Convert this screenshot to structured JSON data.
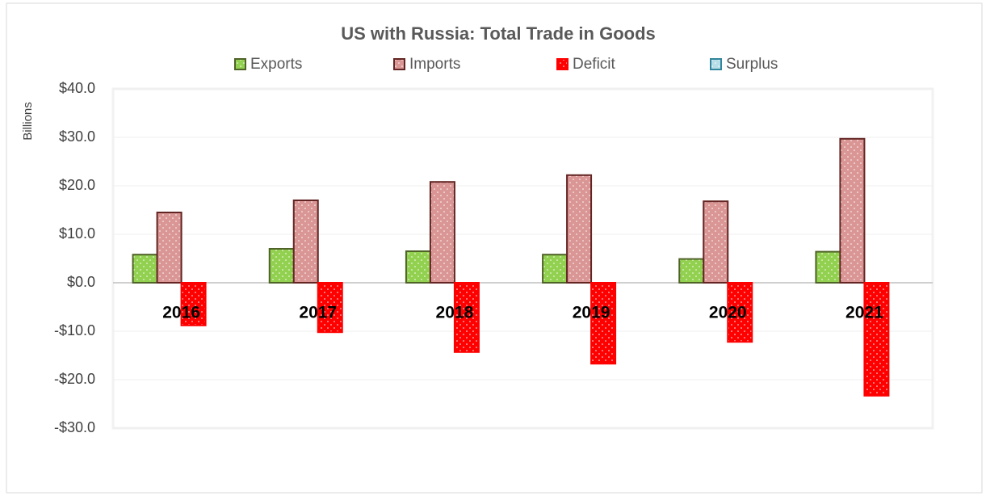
{
  "chart_data": {
    "type": "bar",
    "title": "US with Russia: Total Trade in Goods",
    "ylabel": "Billions",
    "categories": [
      "2016",
      "2017",
      "2018",
      "2019",
      "2020",
      "2021"
    ],
    "series": [
      {
        "name": "Exports",
        "color": "#92d050",
        "edgecolor": "#4f6228",
        "values": [
          5.8,
          7.0,
          6.5,
          5.8,
          4.9,
          6.4
        ]
      },
      {
        "name": "Imports",
        "color": "#d99694",
        "edgecolor": "#632523",
        "values": [
          14.5,
          17.0,
          20.8,
          22.2,
          16.8,
          29.7
        ]
      },
      {
        "name": "Deficit",
        "color": "#ff0000",
        "edgecolor": "#ff0000",
        "values": [
          -8.8,
          -10.2,
          -14.3,
          -16.7,
          -12.2,
          -23.3
        ]
      },
      {
        "name": "Surplus",
        "color": "#b7dee8",
        "edgecolor": "#31859c",
        "values": [
          0,
          0,
          0,
          0,
          0,
          0
        ]
      }
    ],
    "ylim": [
      -30,
      40
    ],
    "yticks": [
      {
        "value": -30,
        "label": "-$30.0"
      },
      {
        "value": -20,
        "label": "-$20.0"
      },
      {
        "value": -10,
        "label": "-$10.0"
      },
      {
        "value": 0,
        "label": "$0.0"
      },
      {
        "value": 10,
        "label": "$10.0"
      },
      {
        "value": 20,
        "label": "$20.0"
      },
      {
        "value": 30,
        "label": "$30.0"
      },
      {
        "value": 40,
        "label": "$40.0"
      }
    ],
    "grid": true,
    "legend": "top"
  }
}
